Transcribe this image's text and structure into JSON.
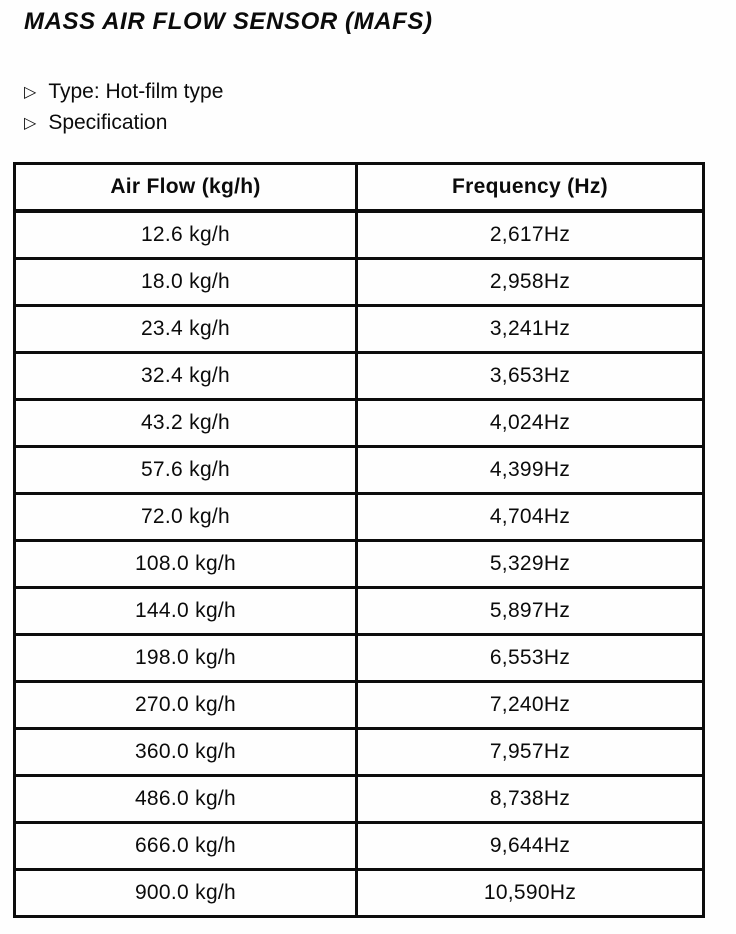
{
  "page": {
    "title": "MASS AIR FLOW SENSOR (MAFS)",
    "bullets": [
      {
        "marker": "▷",
        "label": "Type: Hot-film type"
      },
      {
        "marker": "▷",
        "label": "Specification"
      }
    ]
  },
  "spec_table": {
    "columns": [
      "Air Flow (kg/h)",
      "Frequency (Hz)"
    ],
    "rows": [
      [
        "12.6 kg/h",
        "2,617Hz"
      ],
      [
        "18.0 kg/h",
        "2,958Hz"
      ],
      [
        "23.4 kg/h",
        "3,241Hz"
      ],
      [
        "32.4 kg/h",
        "3,653Hz"
      ],
      [
        "43.2 kg/h",
        "4,024Hz"
      ],
      [
        "57.6 kg/h",
        "4,399Hz"
      ],
      [
        "72.0 kg/h",
        "4,704Hz"
      ],
      [
        "108.0 kg/h",
        "5,329Hz"
      ],
      [
        "144.0 kg/h",
        "5,897Hz"
      ],
      [
        "198.0 kg/h",
        "6,553Hz"
      ],
      [
        "270.0 kg/h",
        "7,240Hz"
      ],
      [
        "360.0 kg/h",
        "7,957Hz"
      ],
      [
        "486.0 kg/h",
        "8,738Hz"
      ],
      [
        "666.0 kg/h",
        "9,644Hz"
      ],
      [
        "900.0 kg/h",
        "10,590Hz"
      ]
    ]
  },
  "colors": {
    "ink": "#0b0b0b",
    "paper": "#fefefe"
  }
}
